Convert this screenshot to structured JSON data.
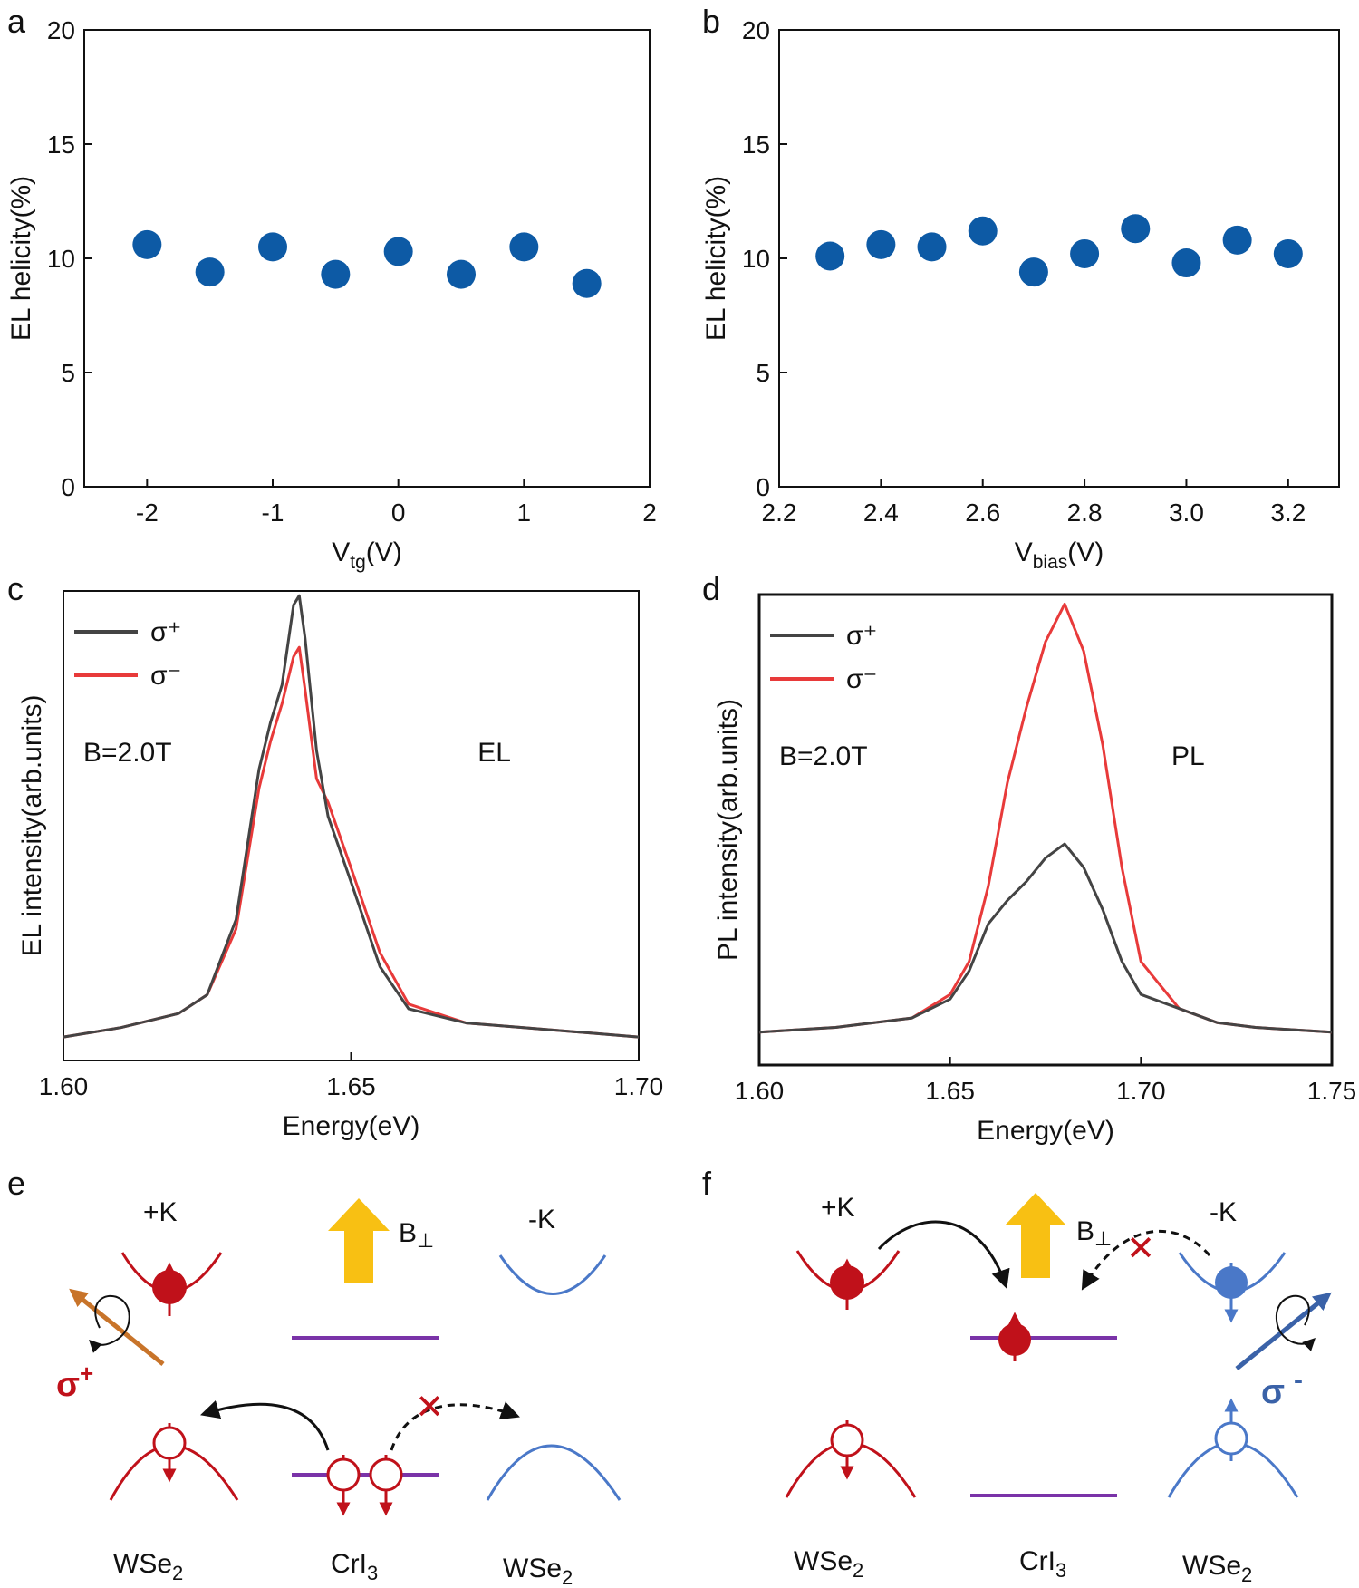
{
  "colors": {
    "dot": "#0d5aa5",
    "sigma_plus_line": "#444444",
    "sigma_minus_line": "#e83a3a",
    "up_valley": "#c0111a",
    "down_valley": "#4a78c8",
    "cri3_level": "#7a33a8",
    "field_arrow": "#f8c013",
    "sigma_plus_arrow": "#c8742a",
    "sigma_minus_arrow": "#3a62a8"
  },
  "chart_data": [
    {
      "panel": "a",
      "type": "scatter",
      "x": [
        -2,
        -1.5,
        -1,
        -0.5,
        0,
        0.5,
        1,
        1.5
      ],
      "y": [
        10.6,
        9.4,
        10.5,
        9.3,
        10.3,
        9.3,
        10.5,
        8.9
      ],
      "xlabel_main": "V",
      "xlabel_sub": "tg",
      "xlabel_tail": "(V)",
      "ylabel": "EL helicity(%)",
      "xlim": [
        -2.5,
        2
      ],
      "ylim": [
        0,
        20
      ],
      "xticks": [
        -2,
        -1,
        0,
        1,
        2
      ],
      "xtick_labels": [
        "-2",
        "-1",
        "0",
        "1",
        "2"
      ],
      "yticks": [
        0,
        5,
        10,
        15,
        20
      ],
      "ytick_labels": [
        "0",
        "5",
        "10",
        "15",
        "20"
      ]
    },
    {
      "panel": "b",
      "type": "scatter",
      "x": [
        2.3,
        2.4,
        2.5,
        2.6,
        2.7,
        2.8,
        2.9,
        3.0,
        3.1,
        3.2
      ],
      "y": [
        10.1,
        10.6,
        10.5,
        11.2,
        9.4,
        10.2,
        11.3,
        9.8,
        10.8,
        10.2
      ],
      "xlabel_main": "V",
      "xlabel_sub": "bias",
      "xlabel_tail": "(V)",
      "ylabel": "EL helicity(%)",
      "xlim": [
        2.2,
        3.3
      ],
      "ylim": [
        0,
        20
      ],
      "xticks": [
        2.2,
        2.4,
        2.6,
        2.8,
        3.0,
        3.2
      ],
      "xtick_labels": [
        "2.2",
        "2.4",
        "2.6",
        "2.8",
        "3.0",
        "3.2"
      ],
      "yticks": [
        0,
        5,
        10,
        15,
        20
      ],
      "ytick_labels": [
        "0",
        "5",
        "10",
        "15",
        "20"
      ]
    },
    {
      "panel": "c",
      "type": "line",
      "xlabel": "Energy(eV)",
      "ylabel": "EL intensity(arb.units)",
      "xlim": [
        1.6,
        1.7
      ],
      "ylim": [
        0,
        1
      ],
      "xticks": [
        1.6,
        1.65,
        1.7
      ],
      "xtick_labels": [
        "1.60",
        "1.65",
        "1.70"
      ],
      "annotation_left": "B=2.0T",
      "annotation_right": "EL",
      "series": [
        {
          "name": "σ⁺",
          "key": "sp",
          "x": [
            1.6,
            1.61,
            1.62,
            1.625,
            1.63,
            1.634,
            1.636,
            1.638,
            1.64,
            1.641,
            1.642,
            1.644,
            1.646,
            1.65,
            1.655,
            1.66,
            1.67,
            1.68,
            1.69,
            1.7
          ],
          "y": [
            0.05,
            0.07,
            0.1,
            0.14,
            0.3,
            0.62,
            0.72,
            0.8,
            0.97,
            0.99,
            0.9,
            0.66,
            0.52,
            0.38,
            0.2,
            0.11,
            0.08,
            0.07,
            0.06,
            0.05
          ]
        },
        {
          "name": "σ⁻",
          "key": "sm",
          "x": [
            1.6,
            1.61,
            1.62,
            1.625,
            1.63,
            1.634,
            1.636,
            1.638,
            1.64,
            1.641,
            1.642,
            1.644,
            1.646,
            1.65,
            1.655,
            1.66,
            1.67,
            1.68,
            1.69,
            1.7
          ],
          "y": [
            0.05,
            0.07,
            0.1,
            0.14,
            0.28,
            0.58,
            0.68,
            0.76,
            0.86,
            0.88,
            0.79,
            0.6,
            0.55,
            0.41,
            0.23,
            0.12,
            0.08,
            0.07,
            0.06,
            0.05
          ]
        }
      ]
    },
    {
      "panel": "d",
      "type": "line",
      "xlabel": "Energy(eV)",
      "ylabel": "PL intensity(arb.units)",
      "xlim": [
        1.6,
        1.75
      ],
      "ylim": [
        0,
        1
      ],
      "xticks": [
        1.6,
        1.65,
        1.7,
        1.75
      ],
      "xtick_labels": [
        "1.60",
        "1.65",
        "1.70",
        "1.75"
      ],
      "annotation_left": "B=2.0T",
      "annotation_right": "PL",
      "series": [
        {
          "name": "σ⁺",
          "key": "sp",
          "x": [
            1.6,
            1.62,
            1.64,
            1.65,
            1.655,
            1.66,
            1.665,
            1.67,
            1.675,
            1.68,
            1.685,
            1.69,
            1.695,
            1.7,
            1.71,
            1.72,
            1.73,
            1.75
          ],
          "y": [
            0.07,
            0.08,
            0.1,
            0.14,
            0.2,
            0.3,
            0.35,
            0.39,
            0.44,
            0.47,
            0.42,
            0.33,
            0.22,
            0.15,
            0.12,
            0.09,
            0.08,
            0.07
          ]
        },
        {
          "name": "σ⁻",
          "key": "sm",
          "x": [
            1.6,
            1.62,
            1.64,
            1.65,
            1.655,
            1.66,
            1.665,
            1.67,
            1.675,
            1.68,
            1.685,
            1.69,
            1.695,
            1.7,
            1.71,
            1.72,
            1.73,
            1.75
          ],
          "y": [
            0.07,
            0.08,
            0.1,
            0.15,
            0.22,
            0.38,
            0.6,
            0.76,
            0.9,
            0.98,
            0.88,
            0.68,
            0.42,
            0.22,
            0.12,
            0.09,
            0.08,
            0.07
          ]
        }
      ]
    }
  ],
  "panel_labels": {
    "a": "a",
    "b": "b",
    "c": "c",
    "d": "d",
    "e": "e",
    "f": "f"
  },
  "diagrams": {
    "e": {
      "plus_k": "+K",
      "minus_k": "-K",
      "field_main": "B",
      "field_sub": "⊥",
      "sigma": "σ",
      "sigma_sup": "+",
      "left_material": "WSe",
      "left_sub": "2",
      "center_material": "CrI",
      "center_sub": "3",
      "right_material": "WSe",
      "right_sub": "2",
      "blocked_mark": "✕"
    },
    "f": {
      "plus_k": "+K",
      "minus_k": "-K",
      "field_main": "B",
      "field_sub": "⊥",
      "sigma": "σ",
      "sigma_sup": "-",
      "left_material": "WSe",
      "left_sub": "2",
      "center_material": "CrI",
      "center_sub": "3",
      "right_material": "WSe",
      "right_sub": "2",
      "blocked_mark": "✕"
    }
  }
}
